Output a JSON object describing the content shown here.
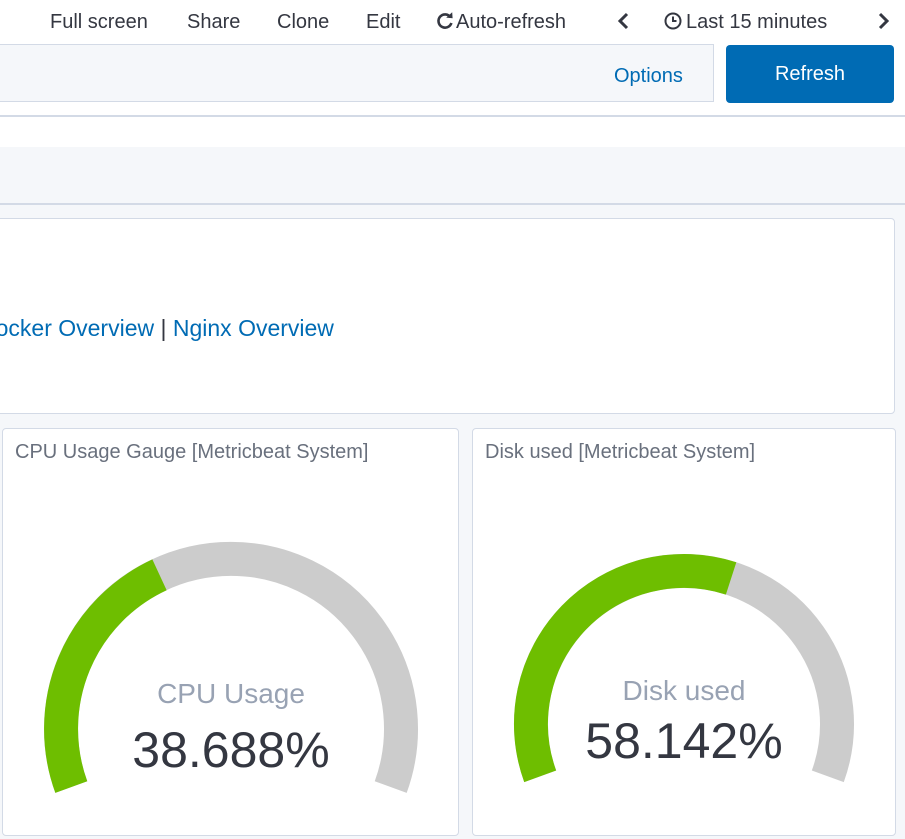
{
  "topnav": {
    "fullscreen": "Full screen",
    "share": "Share",
    "clone": "Clone",
    "edit": "Edit",
    "autorefresh": "Auto-refresh",
    "timerange": "Last 15 minutes"
  },
  "querybar": {
    "options": "Options",
    "refresh": "Refresh"
  },
  "markdown": {
    "links": [
      "Docker Overview",
      "Nginx Overview"
    ],
    "separator": "|"
  },
  "gauges": [
    {
      "title": "CPU Usage Gauge [Metricbeat System]",
      "label": "CPU Usage",
      "value_text": "38.688%",
      "value": 38.688,
      "fill_color": "#6ebe00",
      "track_color": "#cccccc"
    },
    {
      "title": "Disk used [Metricbeat System]",
      "label": "Disk used",
      "value_text": "58.142%",
      "value": 58.142,
      "fill_color": "#6ebe00",
      "track_color": "#cccccc"
    }
  ],
  "colors": {
    "accent": "#006bb4",
    "text": "#343741",
    "muted": "#69707d"
  }
}
